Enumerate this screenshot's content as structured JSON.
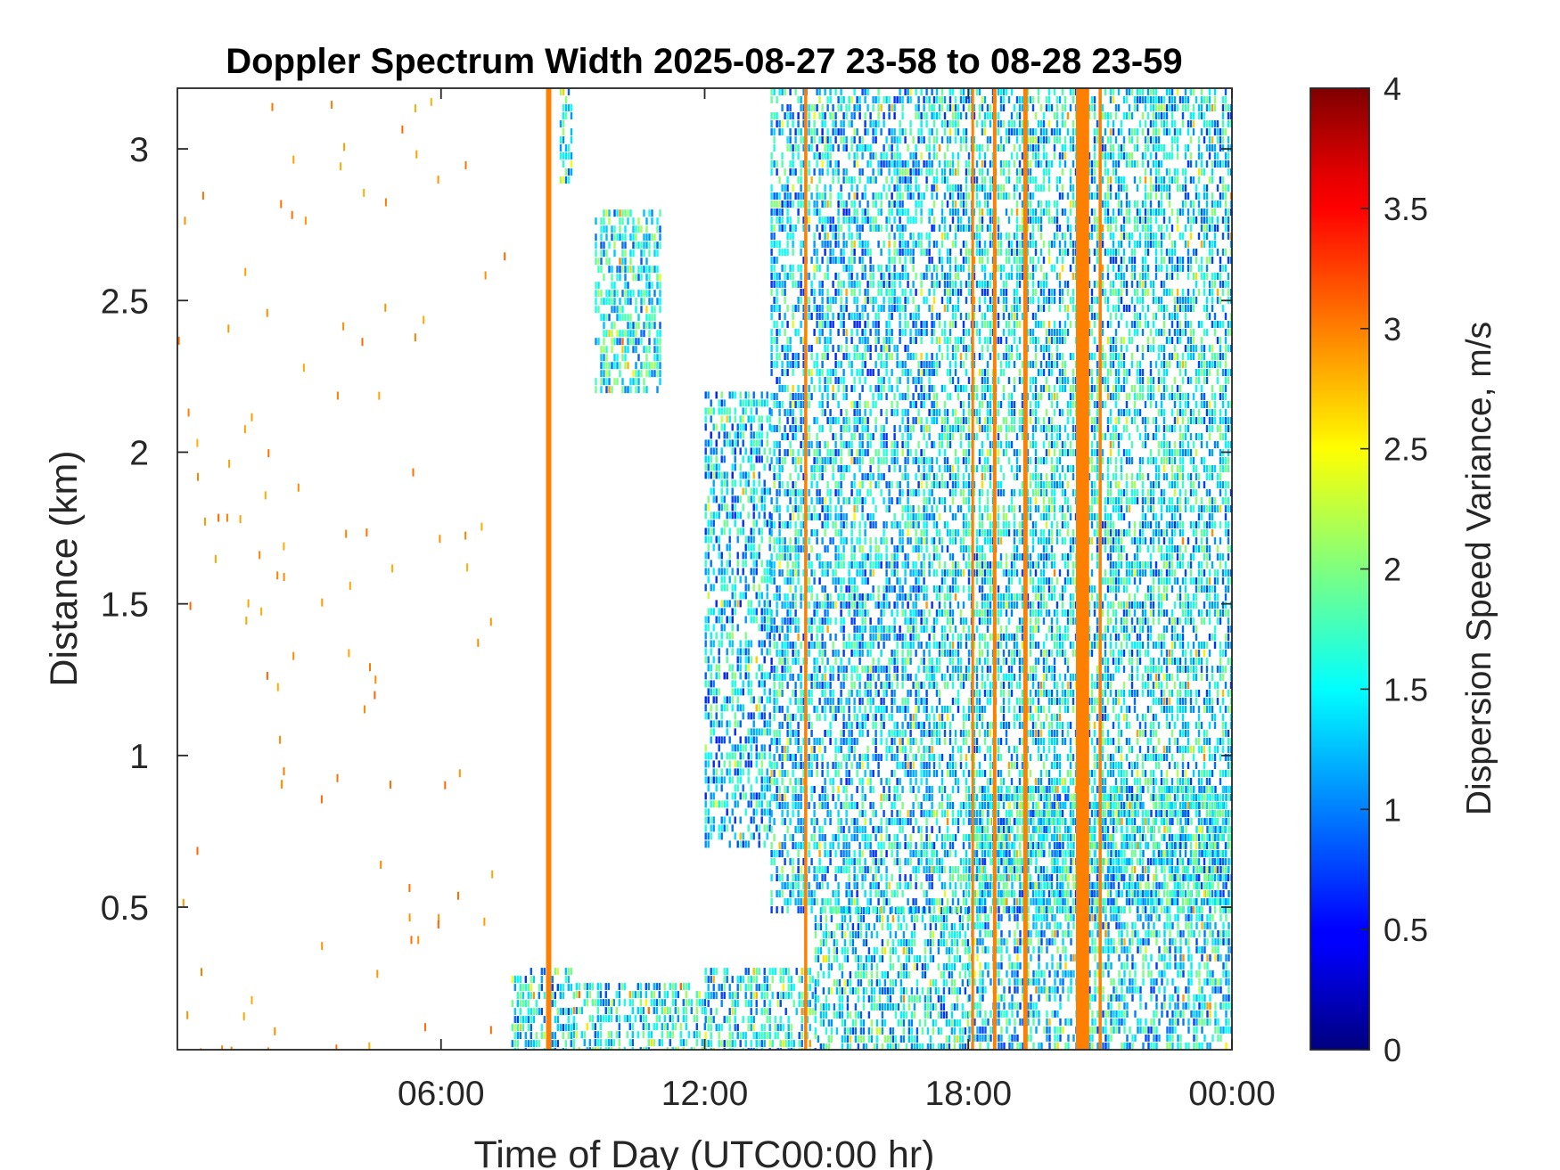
{
  "chart_data": {
    "type": "heatmap",
    "title": "Doppler Spectrum Width 2025-08-27 23-58 to 08-28 23-59",
    "xlabel": "Time of Day (UTC00:00 hr)",
    "ylabel": "Distance (km)",
    "colorbar_label": "Dispersion Speed Variance, m/s",
    "x_range_hours": [
      0,
      24
    ],
    "x_ticks": [
      {
        "hour": 6,
        "label": "06:00"
      },
      {
        "hour": 12,
        "label": "12:00"
      },
      {
        "hour": 18,
        "label": "18:00"
      },
      {
        "hour": 24,
        "label": "00:00"
      }
    ],
    "ylim": [
      0.03,
      3.2
    ],
    "y_ticks": [
      {
        "value": 0.5,
        "label": "0.5"
      },
      {
        "value": 1,
        "label": "1"
      },
      {
        "value": 1.5,
        "label": "1.5"
      },
      {
        "value": 2,
        "label": "2"
      },
      {
        "value": 2.5,
        "label": "2.5"
      },
      {
        "value": 3,
        "label": "3"
      }
    ],
    "clim": [
      0,
      4
    ],
    "colorbar_ticks": [
      {
        "value": 0,
        "label": "0"
      },
      {
        "value": 0.5,
        "label": "0.5"
      },
      {
        "value": 1,
        "label": "1"
      },
      {
        "value": 1.5,
        "label": "1.5"
      },
      {
        "value": 2,
        "label": "2"
      },
      {
        "value": 2.5,
        "label": "2.5"
      },
      {
        "value": 3,
        "label": "3"
      },
      {
        "value": 3.5,
        "label": "3.5"
      },
      {
        "value": 4,
        "label": "4"
      }
    ],
    "colormap": "jet",
    "grid": false,
    "echo_regions": [
      {
        "t_start": 7.6,
        "t_end": 9.0,
        "top_km": 0.3,
        "value": 1.4
      },
      {
        "t_start": 9.0,
        "t_end": 12.0,
        "top_km": 0.25,
        "value": 1.5
      },
      {
        "t_start": 12.0,
        "t_end": 14.5,
        "top_km": 0.3,
        "value": 1.4
      },
      {
        "t_start": 14.5,
        "t_end": 18.0,
        "top_km": 0.5,
        "value": 1.4
      },
      {
        "t_start": 18.0,
        "t_end": 24.0,
        "top_km": 0.9,
        "value": 1.4
      },
      {
        "t_start": 12.0,
        "t_end": 13.5,
        "bottom_km": 0.7,
        "top_km": 2.2,
        "value": 1.3
      },
      {
        "t_start": 13.5,
        "t_end": 17.2,
        "bottom_km": 0.5,
        "top_km": 3.2,
        "value": 1.3
      },
      {
        "t_start": 17.2,
        "t_end": 24.0,
        "bottom_km": 0.5,
        "top_km": 3.2,
        "value": 1.4
      },
      {
        "t_start": 9.5,
        "t_end": 11.0,
        "bottom_km": 2.2,
        "top_km": 2.8,
        "value": 1.5
      },
      {
        "t_start": 8.7,
        "t_end": 9.0,
        "bottom_km": 2.9,
        "top_km": 3.2,
        "value": 1.5
      }
    ],
    "vertical_bands": [
      {
        "hour": 8.45,
        "width_hours": 0.12,
        "value": 3.0
      },
      {
        "hour": 14.3,
        "width_hours": 0.07,
        "value": 3.0
      },
      {
        "hour": 18.1,
        "width_hours": 0.06,
        "value": 3.0
      },
      {
        "hour": 18.6,
        "width_hours": 0.08,
        "value": 3.0
      },
      {
        "hour": 19.3,
        "width_hours": 0.1,
        "value": 3.0
      },
      {
        "hour": 20.6,
        "width_hours": 0.3,
        "value": 3.0
      },
      {
        "hour": 21.0,
        "width_hours": 0.07,
        "value": 3.0
      }
    ]
  }
}
